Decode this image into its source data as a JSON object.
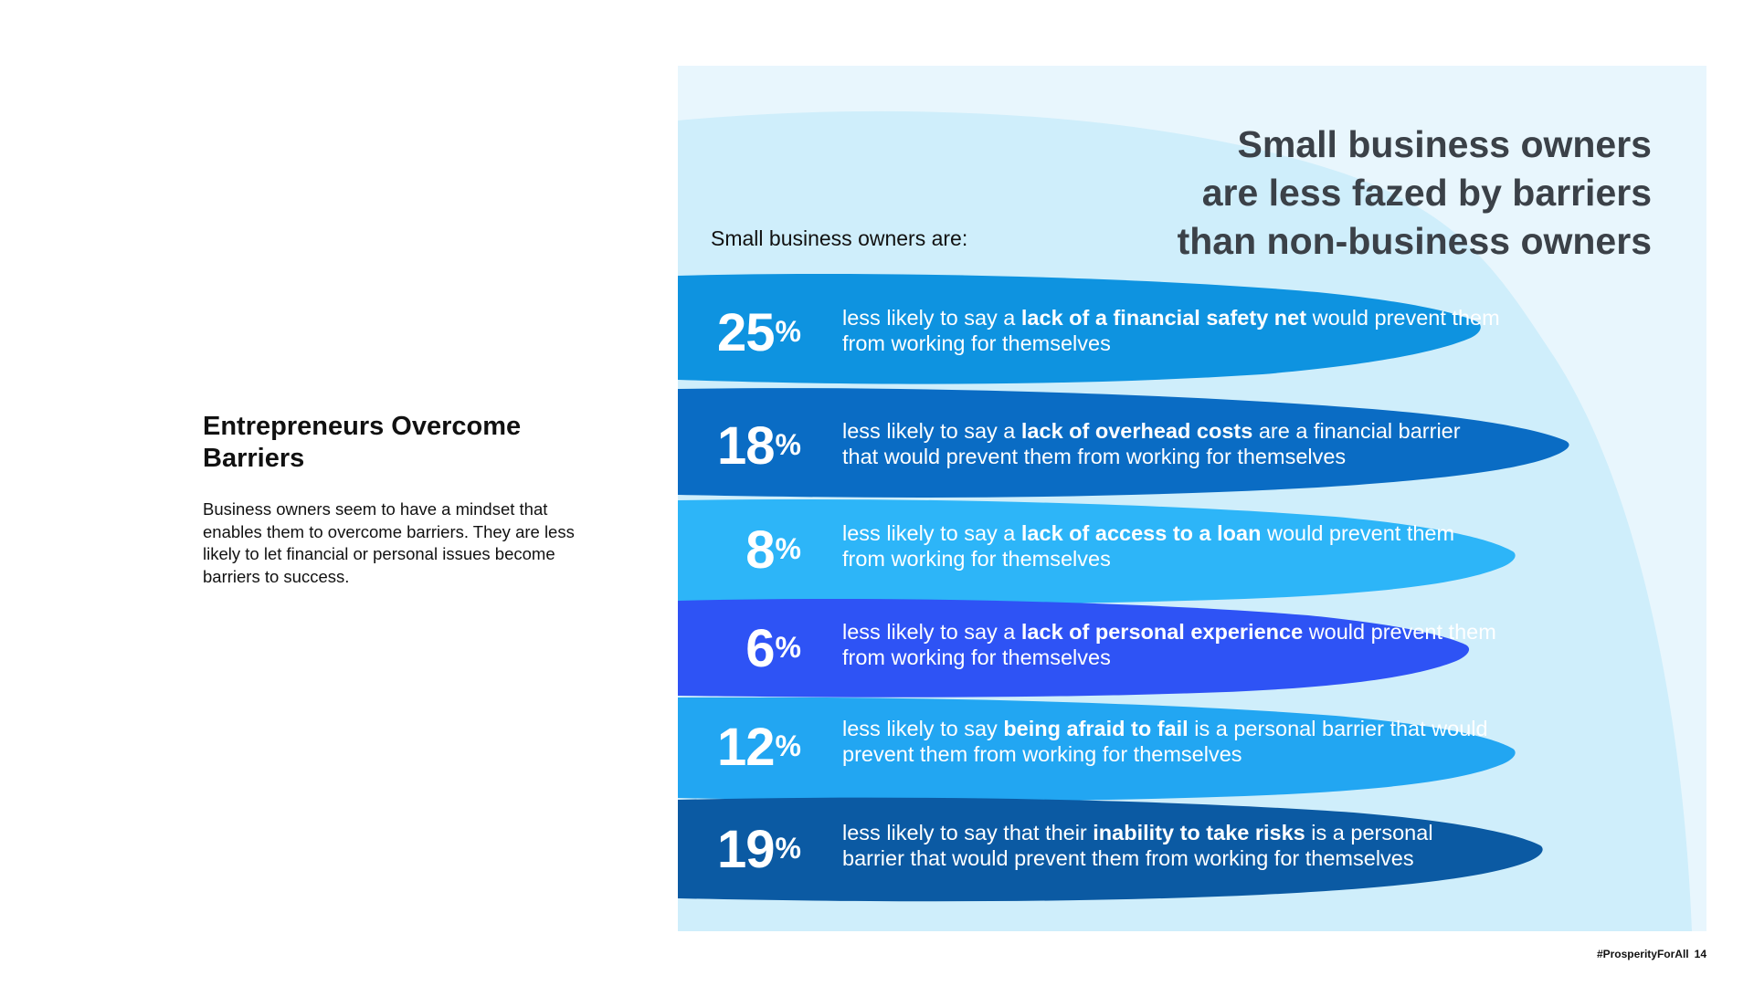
{
  "sidebar": {
    "title": "Entrepreneurs Overcome Barriers",
    "body": "Business owners seem to have a mindset that enables them to overcome barriers. They are less likely to let financial or personal issues become barriers to success."
  },
  "panel": {
    "headline": "Small business owners are less fazed by barriers than non-business owners",
    "intro": "Small business owners are:"
  },
  "stats": [
    {
      "value": "25",
      "unit": "%",
      "pre": "less likely to say a ",
      "bold": "lack of a financial safety net",
      "post": " would prevent them from working for themselves",
      "color": "#0e93e0"
    },
    {
      "value": "18",
      "unit": "%",
      "pre": "less likely to say a ",
      "bold": "lack of overhead costs",
      "post": " are a financial barrier that would prevent them from working for themselves",
      "color": "#0a6cc4"
    },
    {
      "value": "8",
      "unit": "%",
      "pre": "less likely to say a ",
      "bold": "lack of access to a loan",
      "post": " would prevent them from working for themselves",
      "color": "#2db5f8"
    },
    {
      "value": "6",
      "unit": "%",
      "pre": "less likely to say a ",
      "bold": "lack of personal experience",
      "post": " would prevent them from working for themselves",
      "color": "#2e53f5"
    },
    {
      "value": "12",
      "unit": "%",
      "pre": "less likely to say ",
      "bold": "being afraid to fail",
      "post": " is a personal barrier that would prevent them from working for themselves",
      "color": "#22a6f2"
    },
    {
      "value": "19",
      "unit": "%",
      "pre": "less likely to say that their ",
      "bold": "inability to take risks",
      "post": " is a personal barrier that would prevent them from working for themselves",
      "color": "#0b5aa3"
    }
  ],
  "footer": {
    "hashtag": "#ProsperityForAll",
    "page": "14"
  },
  "colors": {
    "panel_bg": "#e8f6fd",
    "wave": "#cfeefb",
    "headline": "#3b4148"
  }
}
